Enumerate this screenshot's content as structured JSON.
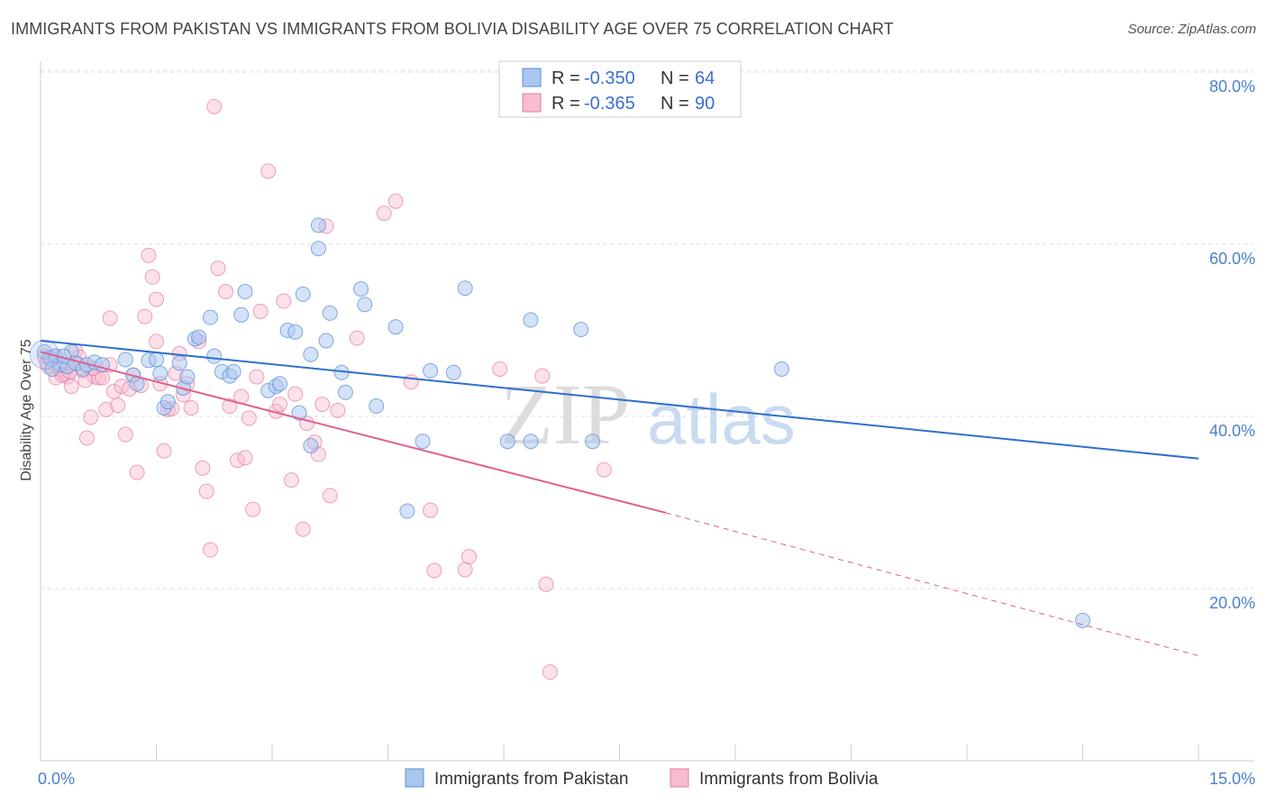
{
  "title": "IMMIGRANTS FROM PAKISTAN VS IMMIGRANTS FROM BOLIVIA DISABILITY AGE OVER 75 CORRELATION CHART",
  "source": "Source: ZipAtlas.com",
  "watermark": {
    "zip": "ZIP",
    "atlas": "atlas"
  },
  "colors": {
    "pakistan_fill": "#a9c6ef",
    "pakistan_stroke": "#5b8fd6",
    "pakistan_line": "#2f6fce",
    "bolivia_fill": "#f7bcd0",
    "bolivia_stroke": "#e57a9f",
    "bolivia_line": "#e0608c"
  },
  "legend": {
    "r_label": "R =",
    "n_label": "N =",
    "rows": [
      {
        "r": "-0.350",
        "n": "64"
      },
      {
        "r": "-0.365",
        "n": "90"
      }
    ]
  },
  "chart_data": {
    "type": "scatter",
    "title": "IMMIGRANTS FROM PAKISTAN VS IMMIGRANTS FROM BOLIVIA DISABILITY AGE OVER 75 CORRELATION CHART",
    "xlabel": "",
    "ylabel": "Disability Age Over 75",
    "xlim": [
      0,
      15
    ],
    "ylim": [
      0,
      80
    ],
    "x_tick_labels": [
      "0.0%",
      "15.0%"
    ],
    "y_tick_labels": [
      "20.0%",
      "40.0%",
      "60.0%",
      "80.0%"
    ],
    "y_ticks": [
      20,
      40,
      60,
      80
    ],
    "grid": true,
    "legend_position": "top-center",
    "series": [
      {
        "name": "Immigrants from Pakistan",
        "trend": {
          "x": [
            0.0,
            15.0
          ],
          "y": [
            48.8,
            35.1
          ]
        },
        "points": [
          [
            0.05,
            47.5
          ],
          [
            0.12,
            46.8
          ],
          [
            0.2,
            47.0
          ],
          [
            0.25,
            46.0
          ],
          [
            0.35,
            45.8
          ],
          [
            0.4,
            47.5
          ],
          [
            0.45,
            46.2
          ],
          [
            0.55,
            45.5
          ],
          [
            0.6,
            46.0
          ],
          [
            0.7,
            46.3
          ],
          [
            0.8,
            46.0
          ],
          [
            1.1,
            46.6
          ],
          [
            1.2,
            44.8
          ],
          [
            1.25,
            43.8
          ],
          [
            1.4,
            46.5
          ],
          [
            1.5,
            46.6
          ],
          [
            1.55,
            45.0
          ],
          [
            1.6,
            41.0
          ],
          [
            1.65,
            41.7
          ],
          [
            1.8,
            46.2
          ],
          [
            1.85,
            43.3
          ],
          [
            1.9,
            44.6
          ],
          [
            2.0,
            49.0
          ],
          [
            2.05,
            49.2
          ],
          [
            2.2,
            51.5
          ],
          [
            2.25,
            47.0
          ],
          [
            2.35,
            45.2
          ],
          [
            2.45,
            44.7
          ],
          [
            2.5,
            45.2
          ],
          [
            2.6,
            51.8
          ],
          [
            2.65,
            54.5
          ],
          [
            2.95,
            43.0
          ],
          [
            3.05,
            43.5
          ],
          [
            3.1,
            43.8
          ],
          [
            3.2,
            50.0
          ],
          [
            3.3,
            49.8
          ],
          [
            3.35,
            40.4
          ],
          [
            3.4,
            54.2
          ],
          [
            3.5,
            36.6
          ],
          [
            3.5,
            47.2
          ],
          [
            3.6,
            62.2
          ],
          [
            3.6,
            59.5
          ],
          [
            3.7,
            48.8
          ],
          [
            3.75,
            52.0
          ],
          [
            3.9,
            45.1
          ],
          [
            3.95,
            42.8
          ],
          [
            4.15,
            54.8
          ],
          [
            4.2,
            53.0
          ],
          [
            4.35,
            41.2
          ],
          [
            4.6,
            50.4
          ],
          [
            4.75,
            29.0
          ],
          [
            4.95,
            37.1
          ],
          [
            5.05,
            45.3
          ],
          [
            5.35,
            45.1
          ],
          [
            5.5,
            54.9
          ],
          [
            6.05,
            37.1
          ],
          [
            6.35,
            51.2
          ],
          [
            6.35,
            37.1
          ],
          [
            7.0,
            50.1
          ],
          [
            7.15,
            37.1
          ],
          [
            9.6,
            45.5
          ],
          [
            13.5,
            16.3
          ],
          [
            0.15,
            45.5
          ],
          [
            0.3,
            47.0
          ]
        ]
      },
      {
        "name": "Immigrants from Bolivia",
        "trend": {
          "x": [
            0.0,
            8.1
          ],
          "y": [
            47.5,
            28.8
          ],
          "dashed_x": [
            8.1,
            15.0
          ],
          "dashed_y": [
            28.8,
            12.2
          ]
        },
        "points": [
          [
            0.05,
            47.0
          ],
          [
            0.1,
            45.8
          ],
          [
            0.15,
            46.6
          ],
          [
            0.2,
            44.5
          ],
          [
            0.25,
            45.5
          ],
          [
            0.3,
            45.0
          ],
          [
            0.35,
            44.6
          ],
          [
            0.4,
            43.5
          ],
          [
            0.45,
            47.6
          ],
          [
            0.5,
            46.9
          ],
          [
            0.55,
            45.3
          ],
          [
            0.6,
            37.5
          ],
          [
            0.65,
            39.9
          ],
          [
            0.7,
            44.6
          ],
          [
            0.75,
            44.5
          ],
          [
            0.8,
            44.5
          ],
          [
            0.85,
            40.8
          ],
          [
            0.9,
            51.4
          ],
          [
            0.9,
            46.0
          ],
          [
            0.95,
            42.9
          ],
          [
            1.0,
            41.3
          ],
          [
            1.05,
            43.5
          ],
          [
            1.1,
            37.9
          ],
          [
            1.15,
            43.2
          ],
          [
            1.2,
            44.8
          ],
          [
            1.25,
            33.5
          ],
          [
            1.3,
            43.6
          ],
          [
            1.35,
            51.6
          ],
          [
            1.4,
            58.7
          ],
          [
            1.45,
            56.2
          ],
          [
            1.5,
            48.7
          ],
          [
            1.5,
            53.6
          ],
          [
            1.55,
            43.8
          ],
          [
            1.6,
            36.0
          ],
          [
            1.65,
            40.8
          ],
          [
            1.7,
            40.9
          ],
          [
            1.75,
            45.0
          ],
          [
            1.8,
            47.3
          ],
          [
            1.85,
            42.5
          ],
          [
            1.9,
            43.8
          ],
          [
            1.95,
            41.0
          ],
          [
            2.05,
            48.7
          ],
          [
            2.1,
            34.0
          ],
          [
            2.15,
            31.3
          ],
          [
            2.2,
            24.5
          ],
          [
            2.25,
            76.0
          ],
          [
            2.3,
            57.2
          ],
          [
            2.4,
            54.5
          ],
          [
            2.45,
            41.2
          ],
          [
            2.55,
            34.9
          ],
          [
            2.6,
            42.3
          ],
          [
            2.65,
            35.2
          ],
          [
            2.7,
            39.8
          ],
          [
            2.75,
            29.2
          ],
          [
            2.8,
            44.6
          ],
          [
            2.85,
            52.2
          ],
          [
            2.95,
            68.5
          ],
          [
            3.05,
            40.6
          ],
          [
            3.1,
            41.4
          ],
          [
            3.15,
            53.4
          ],
          [
            3.25,
            32.6
          ],
          [
            3.3,
            42.6
          ],
          [
            3.4,
            26.9
          ],
          [
            3.45,
            39.2
          ],
          [
            3.55,
            37.0
          ],
          [
            3.6,
            35.6
          ],
          [
            3.65,
            41.4
          ],
          [
            3.7,
            62.1
          ],
          [
            3.75,
            30.8
          ],
          [
            3.85,
            40.7
          ],
          [
            4.1,
            49.1
          ],
          [
            4.45,
            63.6
          ],
          [
            4.6,
            65.0
          ],
          [
            4.8,
            44.0
          ],
          [
            5.05,
            29.1
          ],
          [
            5.1,
            22.1
          ],
          [
            5.5,
            22.2
          ],
          [
            5.55,
            23.7
          ],
          [
            5.95,
            45.5
          ],
          [
            6.5,
            44.7
          ],
          [
            6.55,
            20.5
          ],
          [
            6.6,
            10.3
          ],
          [
            7.3,
            33.8
          ],
          [
            0.08,
            46.2
          ],
          [
            0.18,
            47.0
          ],
          [
            0.28,
            44.8
          ],
          [
            0.38,
            45.2
          ],
          [
            0.48,
            46.1
          ],
          [
            0.58,
            44.2
          ],
          [
            0.68,
            45.6
          ]
        ]
      }
    ]
  },
  "bottom_legend": [
    {
      "label": "Immigrants from Pakistan"
    },
    {
      "label": "Immigrants from Bolivia"
    }
  ]
}
